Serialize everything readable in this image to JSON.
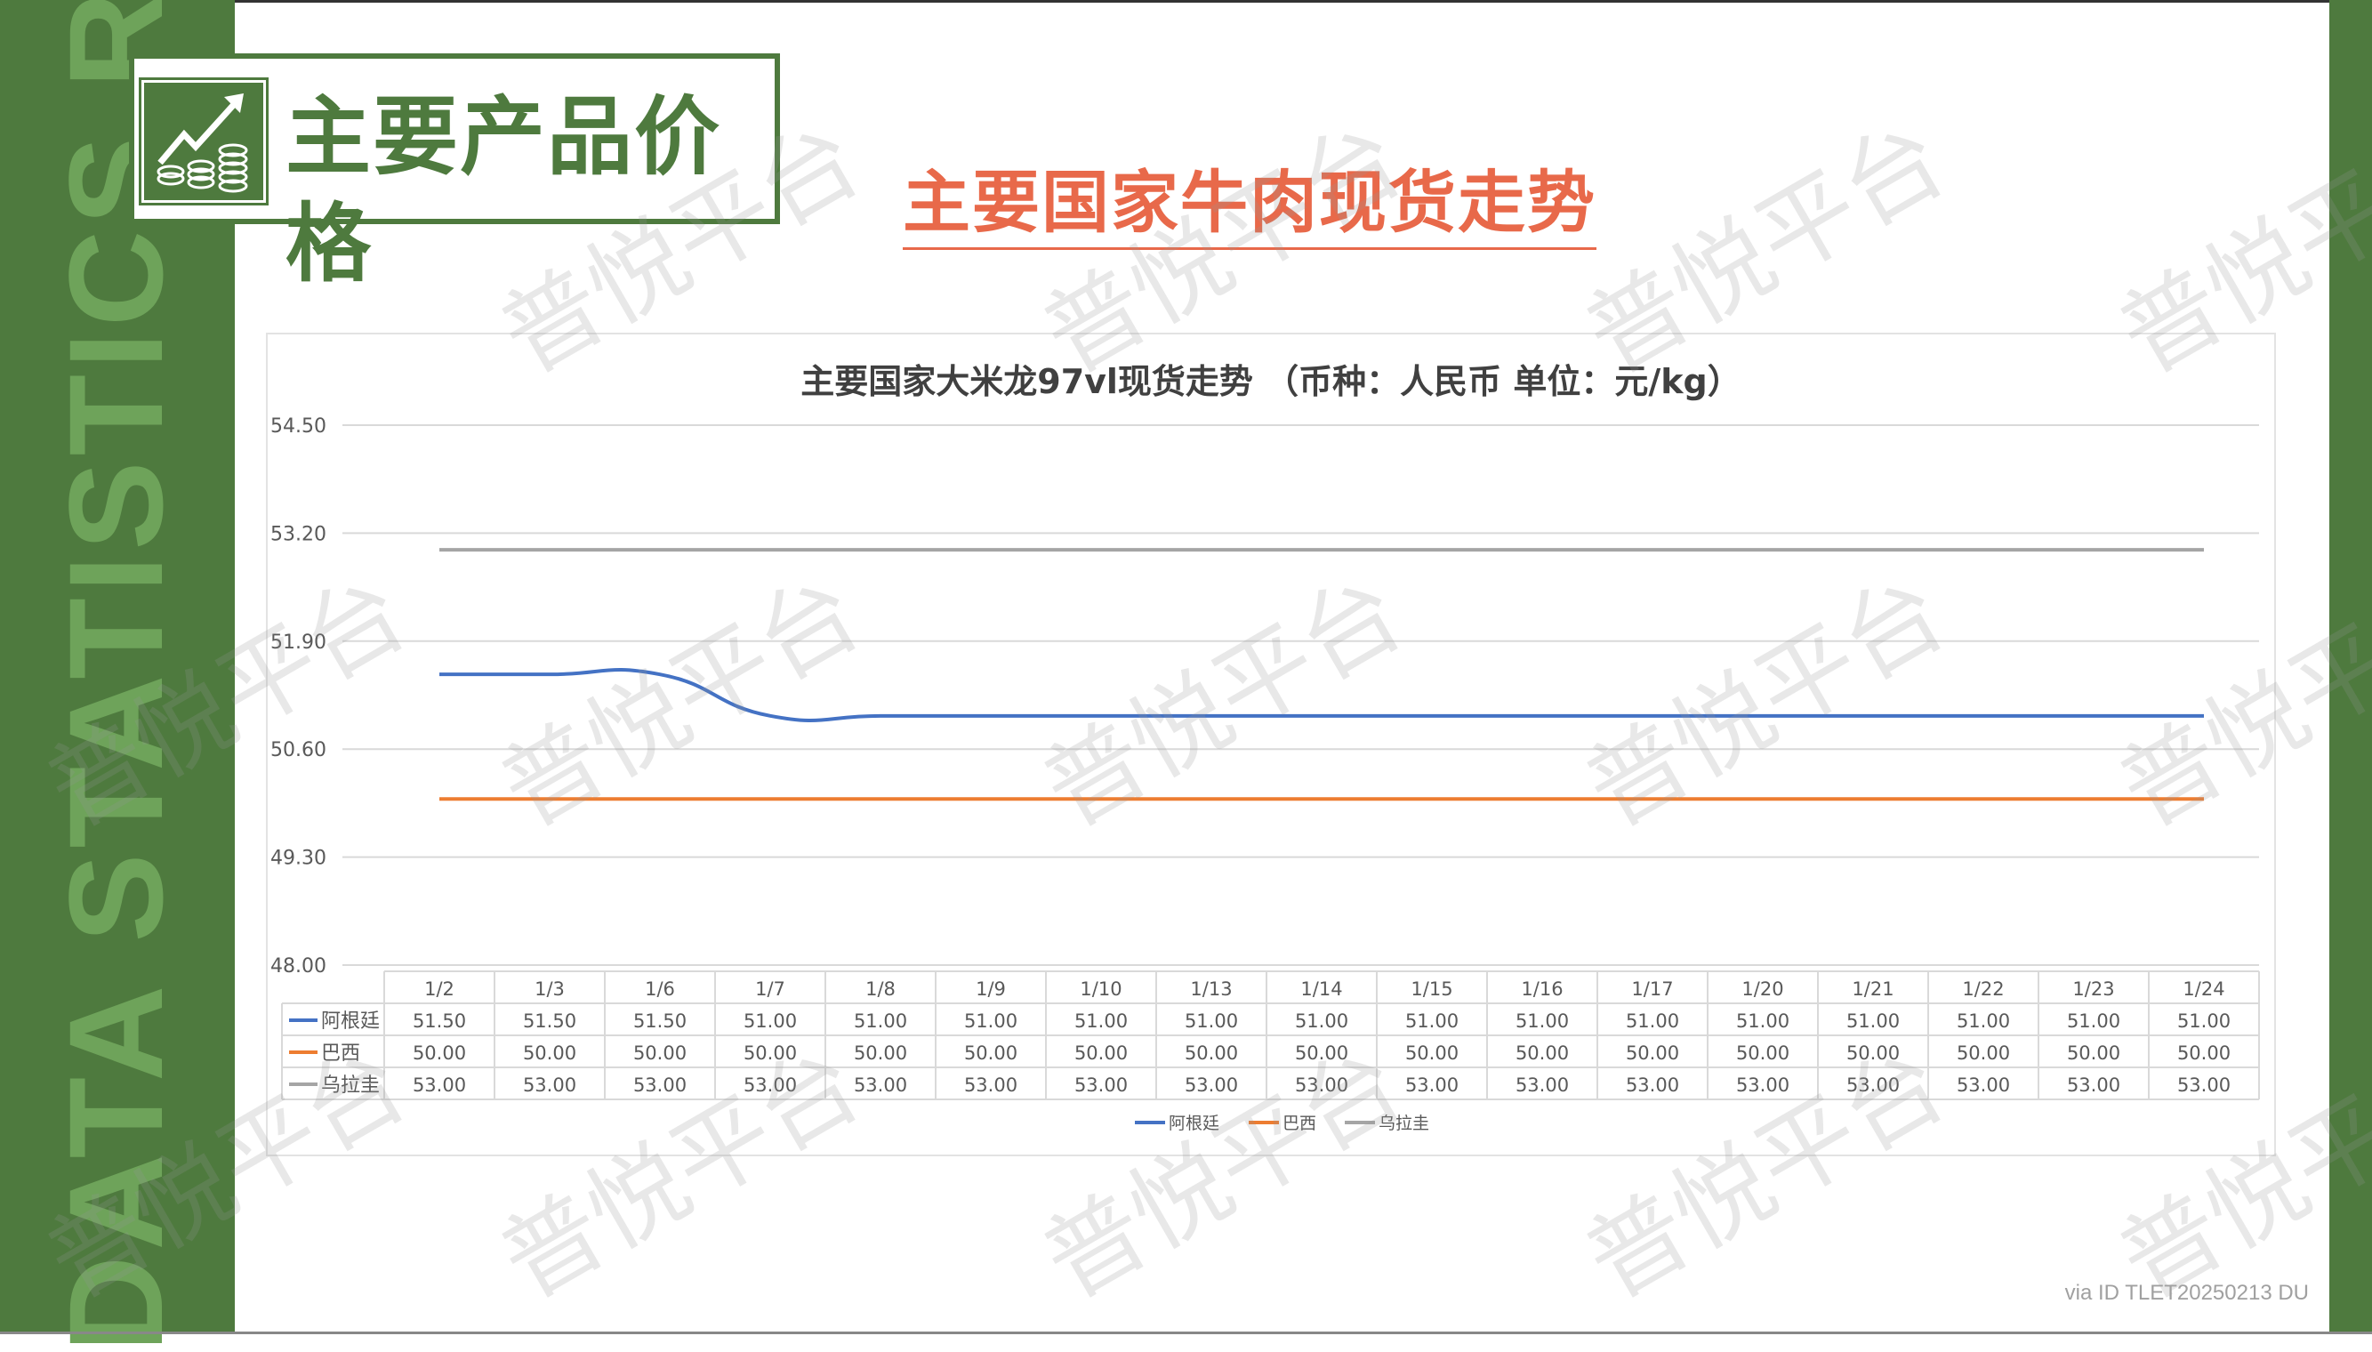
{
  "sidebar": {
    "vertical_text": "DATA STATISTICS REPORT"
  },
  "header": {
    "title": "主要产品价格",
    "icon": "chart-growth-coins-icon"
  },
  "subtitle": "主要国家牛肉现货走势",
  "watermark": "普悦平台",
  "footer": "via ID TLET20250213 DU",
  "colors": {
    "brand_green": "#4e7a3e",
    "accent_orange": "#e8694a"
  },
  "chart_data": {
    "type": "line",
    "title": "主要国家大米龙97vl现货走势 （币种：人民币 单位：元/kg）",
    "categories": [
      "1/2",
      "1/3",
      "1/6",
      "1/7",
      "1/8",
      "1/9",
      "1/10",
      "1/13",
      "1/14",
      "1/15",
      "1/16",
      "1/17",
      "1/20",
      "1/21",
      "1/22",
      "1/23",
      "1/24"
    ],
    "ylim": [
      48.0,
      54.5
    ],
    "yticks": [
      "48.00",
      "49.30",
      "50.60",
      "51.90",
      "53.20",
      "54.50"
    ],
    "grid": true,
    "legend": "bottom",
    "data_table": true,
    "series": [
      {
        "name": "阿根廷",
        "color": "#4472c4",
        "values": [
          51.5,
          51.5,
          51.5,
          51.0,
          51.0,
          51.0,
          51.0,
          51.0,
          51.0,
          51.0,
          51.0,
          51.0,
          51.0,
          51.0,
          51.0,
          51.0,
          51.0
        ]
      },
      {
        "name": "巴西",
        "color": "#ed7d31",
        "values": [
          50.0,
          50.0,
          50.0,
          50.0,
          50.0,
          50.0,
          50.0,
          50.0,
          50.0,
          50.0,
          50.0,
          50.0,
          50.0,
          50.0,
          50.0,
          50.0,
          50.0
        ]
      },
      {
        "name": "乌拉圭",
        "color": "#a5a5a5",
        "values": [
          53.0,
          53.0,
          53.0,
          53.0,
          53.0,
          53.0,
          53.0,
          53.0,
          53.0,
          53.0,
          53.0,
          53.0,
          53.0,
          53.0,
          53.0,
          53.0,
          53.0
        ]
      }
    ]
  }
}
